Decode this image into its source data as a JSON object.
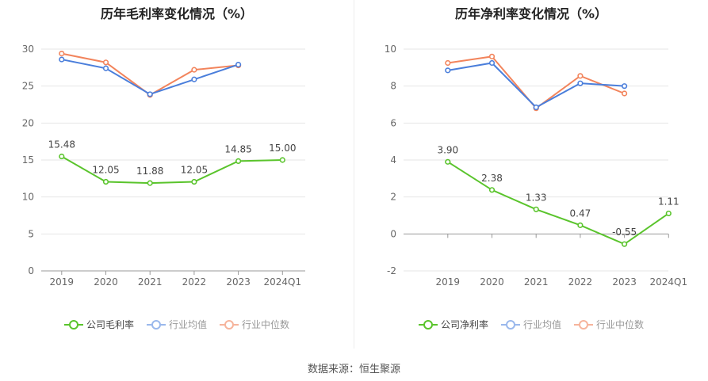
{
  "source": "数据来源：恒生聚源",
  "chart_data": [
    {
      "type": "line",
      "title": "历年毛利率变化情况（%）",
      "categories": [
        "2019",
        "2020",
        "2021",
        "2022",
        "2023",
        "2024Q1"
      ],
      "ylim": [
        0,
        30
      ],
      "yticks": [
        0,
        5,
        10,
        15,
        20,
        25,
        30
      ],
      "grid": true,
      "legend": "bottom",
      "series": [
        {
          "name": "公司毛利率",
          "color": "#5ac42c",
          "values": [
            15.48,
            12.05,
            11.88,
            12.05,
            14.85,
            15.0
          ],
          "labels": [
            "15.48",
            "12.05",
            "11.88",
            "12.05",
            "14.85",
            "15.00"
          ]
        },
        {
          "name": "行业均值",
          "color": "#4a7edb",
          "values": [
            28.6,
            27.4,
            23.9,
            25.9,
            27.9,
            null
          ]
        },
        {
          "name": "行业中位数",
          "color": "#f2845c",
          "values": [
            29.4,
            28.2,
            23.8,
            27.2,
            27.8,
            null
          ]
        }
      ]
    },
    {
      "type": "line",
      "title": "历年净利率变化情况（%）",
      "categories": [
        "2019",
        "2020",
        "2021",
        "2022",
        "2023",
        "2024Q1"
      ],
      "ylim": [
        -2,
        10
      ],
      "yticks": [
        -2,
        0,
        2,
        4,
        6,
        8,
        10
      ],
      "grid": true,
      "legend": "bottom",
      "series": [
        {
          "name": "公司净利率",
          "color": "#5ac42c",
          "values": [
            3.9,
            2.38,
            1.33,
            0.47,
            -0.55,
            1.11
          ],
          "labels": [
            "3.90",
            "2.38",
            "1.33",
            "0.47",
            "-0.55",
            "1.11"
          ]
        },
        {
          "name": "行业均值",
          "color": "#4a7edb",
          "values": [
            8.85,
            9.25,
            6.85,
            8.15,
            8.0,
            null
          ]
        },
        {
          "name": "行业中位数",
          "color": "#f2845c",
          "values": [
            9.25,
            9.6,
            6.8,
            8.55,
            7.6,
            null
          ]
        }
      ]
    }
  ]
}
